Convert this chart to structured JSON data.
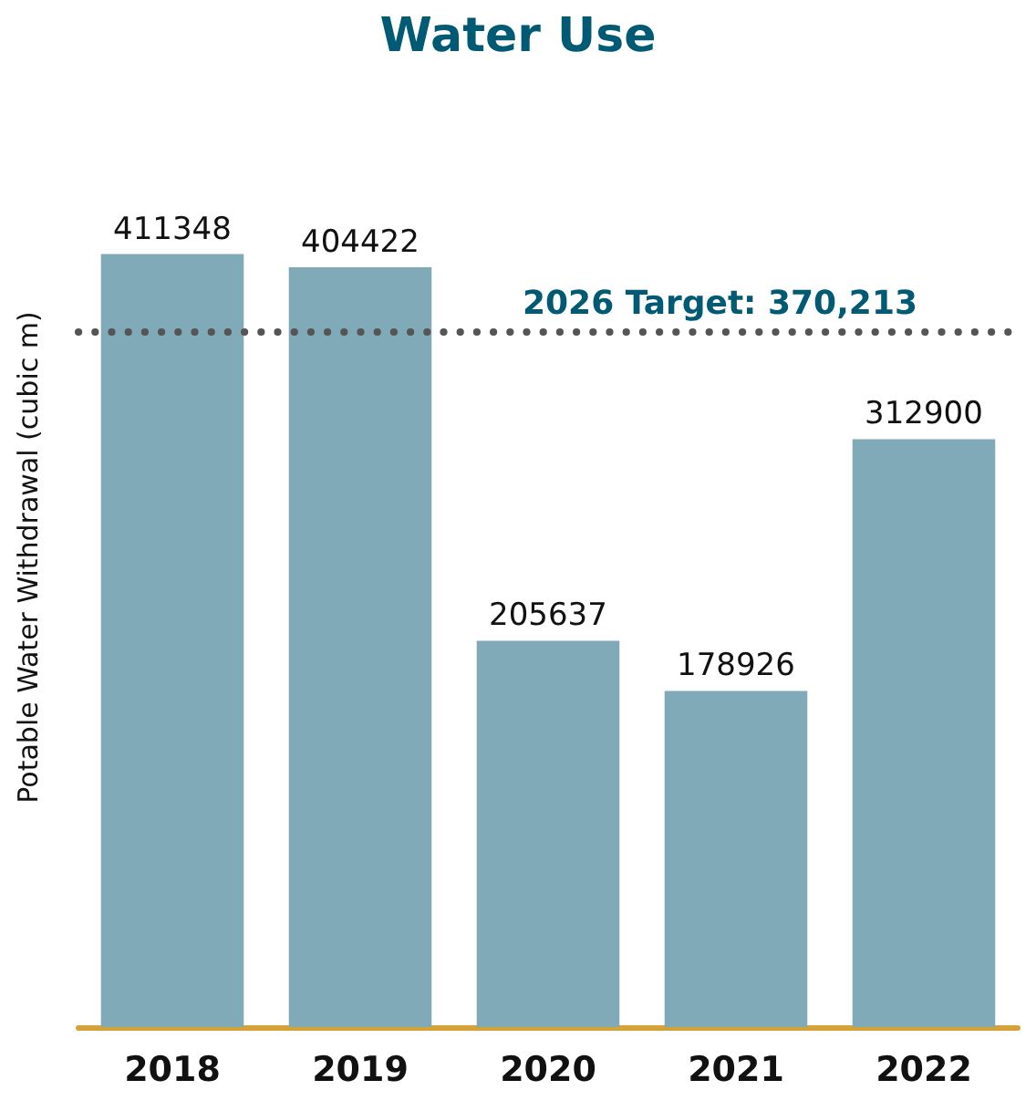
{
  "chart_data": {
    "type": "bar",
    "title": "Water Use",
    "ylabel": "Potable Water Withdrawal (cubic m)",
    "categories": [
      "2018",
      "2019",
      "2020",
      "2021",
      "2022"
    ],
    "values": [
      411348,
      404422,
      205637,
      178926,
      312900
    ],
    "color": "#80aab8",
    "data_labels": true,
    "grid": false,
    "tick_labels": "x",
    "ref_lines": [
      {
        "axis": "y",
        "value": 370213,
        "label": "2026 Target: 370,213",
        "color": "#555555",
        "line_style": "dotted"
      }
    ]
  }
}
